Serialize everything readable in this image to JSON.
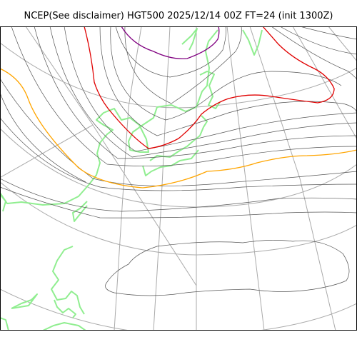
{
  "title": "NCEP(See disclaimer) HGT500 2025/12/14 00Z FT=24 (init 1300Z)",
  "map": {
    "projection": "polar-stereographic",
    "graticule": "on",
    "contour_field": "500 hPa geopotential height",
    "colors": {
      "contour": "#555555",
      "graticule": "#aaaaaa",
      "coastline": "#90ee90",
      "highlight_purple": "#800080",
      "highlight_red": "#e00000",
      "highlight_orange": "#ffa500"
    }
  }
}
